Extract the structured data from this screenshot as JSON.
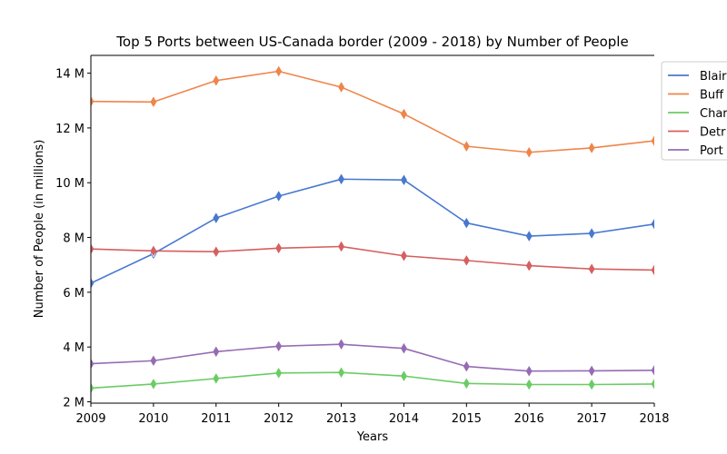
{
  "chart_data": {
    "type": "line",
    "title": "Top 5 Ports between US-Canada border (2009 - 2018) by Number of People",
    "xlabel": "Years",
    "ylabel": "Number of People (in millions)",
    "x": [
      2009,
      2010,
      2011,
      2012,
      2013,
      2014,
      2015,
      2016,
      2017,
      2018
    ],
    "xlim": [
      2009,
      2018
    ],
    "ylim": [
      1.95,
      14.65
    ],
    "yticks": [
      2,
      4,
      6,
      8,
      10,
      12,
      14
    ],
    "ytick_labels": [
      "2 M",
      "4 M",
      "6 M",
      "8 M",
      "10 M",
      "12 M",
      "14 M"
    ],
    "grid": false,
    "legend_position": "outside-top-right",
    "series": [
      {
        "name": "Blaine",
        "legend_label": "Blair",
        "color": "#4878d0",
        "values": [
          6.33,
          7.41,
          8.71,
          9.51,
          10.13,
          10.1,
          8.53,
          8.05,
          8.15,
          8.49
        ]
      },
      {
        "name": "Buffalo",
        "legend_label": "Buff",
        "color": "#ee854a",
        "values": [
          12.97,
          12.95,
          13.73,
          14.07,
          13.49,
          12.51,
          11.33,
          11.11,
          11.27,
          11.53
        ]
      },
      {
        "name": "Champlain",
        "legend_label": "Char",
        "color": "#6acc64",
        "values": [
          2.5,
          2.65,
          2.85,
          3.05,
          3.07,
          2.94,
          2.67,
          2.63,
          2.63,
          2.65
        ]
      },
      {
        "name": "Detroit",
        "legend_label": "Detr",
        "color": "#d65f5f",
        "values": [
          7.58,
          7.51,
          7.48,
          7.61,
          7.67,
          7.33,
          7.16,
          6.97,
          6.85,
          6.81
        ]
      },
      {
        "name": "Port Huron",
        "legend_label": "Port",
        "color": "#956cb4",
        "values": [
          3.39,
          3.5,
          3.83,
          4.03,
          4.1,
          3.95,
          3.29,
          3.12,
          3.13,
          3.15
        ]
      }
    ]
  }
}
